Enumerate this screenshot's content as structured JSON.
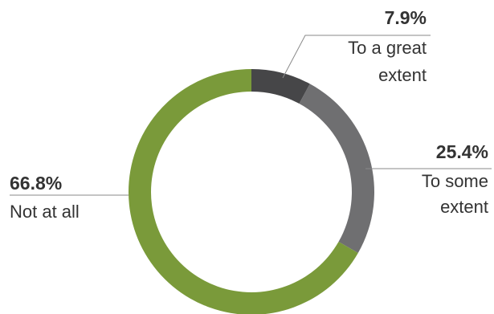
{
  "chart_data": {
    "type": "pie",
    "variant": "donut",
    "slices": [
      {
        "label_lines": [
          "To a great",
          "extent"
        ],
        "pct_label": "7.9%",
        "value": 7.9,
        "color": "#464648"
      },
      {
        "label_lines": [
          "To some",
          "extent"
        ],
        "pct_label": "25.4%",
        "value": 25.4,
        "color": "#6f6f71"
      },
      {
        "label_lines": [
          "Not at all"
        ],
        "pct_label": "66.8%",
        "value": 66.8,
        "color": "#7a9a3a"
      }
    ],
    "leader_line_color": "#8a8a8a"
  }
}
